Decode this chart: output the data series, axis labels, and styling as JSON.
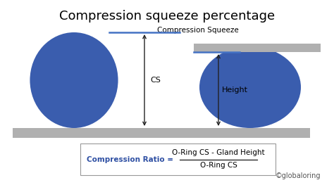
{
  "title": "Compression squeeze percentage",
  "title_fontsize": 13,
  "background_color": "#ffffff",
  "circle_color": "#3a5dae",
  "plate_color": "#b0b0b0",
  "arrow_color": "#222222",
  "blue_line_color": "#4472c4",
  "formula_color": "#2e4fa3",
  "cs_label": "CS",
  "height_label": "Height",
  "compression_squeeze_label": "Compression Squeeze",
  "formula_label_left": "Compression Ratio",
  "formula_numerator": "O-Ring CS - Gland Height",
  "formula_denominator": "O-Ring CS",
  "watermark": "©globaloring",
  "label_fontsize": 8,
  "small_fontsize": 7.5,
  "formula_fontsize": 7.5
}
